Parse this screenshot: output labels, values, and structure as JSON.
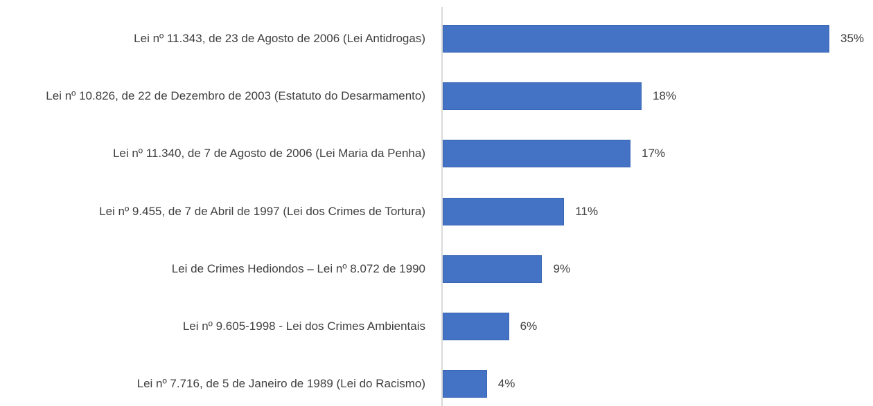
{
  "chart_data": {
    "type": "bar",
    "orientation": "horizontal",
    "categories": [
      "Lei nº 11.343, de 23 de Agosto de 2006 (Lei Antidrogas)",
      "Lei nº 10.826, de 22 de Dezembro de 2003 (Estatuto do Desarmamento)",
      "Lei nº 11.340, de 7 de Agosto de 2006 (Lei Maria da Penha)",
      "Lei nº 9.455, de 7 de Abril de 1997 (Lei dos Crimes de Tortura)",
      "Lei de Crimes Hediondos – Lei nº 8.072 de 1990",
      "Lei nº 9.605-1998 - Lei dos Crimes Ambientais",
      "Lei nº 7.716, de 5 de Janeiro de 1989 (Lei do Racismo)"
    ],
    "values": [
      35,
      18,
      17,
      11,
      9,
      6,
      4
    ],
    "value_labels": [
      "35%",
      "18%",
      "17%",
      "11%",
      "9%",
      "6%",
      "4%"
    ],
    "color": "#4472c4"
  }
}
